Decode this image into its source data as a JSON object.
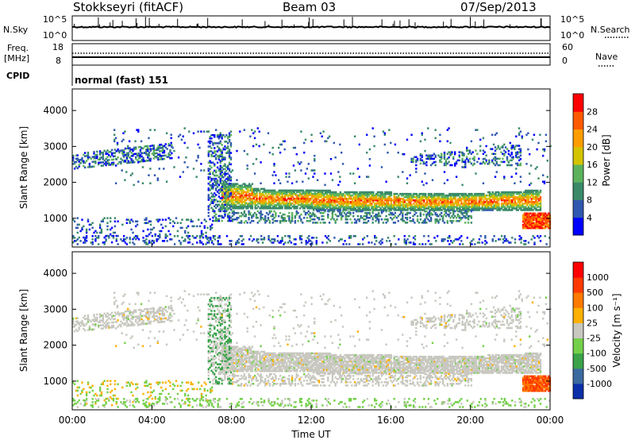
{
  "header": {
    "station": "Stokkseyri (fitACF)",
    "beam": "Beam 03",
    "date": "07/Sep/2013"
  },
  "nsky_panel": {
    "left_label": "N.Sky",
    "left_ticks": [
      "10^5",
      "10^0"
    ],
    "right_ticks": [
      "10^5",
      "10^0"
    ],
    "right_label": "N.Search"
  },
  "freq_panel": {
    "left_label_1": "Freq.",
    "left_label_2": "[MHz]",
    "left_ticks": [
      "18",
      "8"
    ],
    "right_ticks": [
      "60",
      "0"
    ],
    "right_label": "Nave"
  },
  "cpid_panel": {
    "label": "CPID",
    "text": "normal (fast) 151"
  },
  "chart_data": [
    {
      "type": "heatmap",
      "name": "power-panel",
      "ylabel": "Slant Range [km]",
      "x_ticks": [
        "00:00",
        "04:00",
        "08:00",
        "12:00",
        "16:00",
        "20:00",
        "00:00"
      ],
      "xlim_hours": [
        0,
        24
      ],
      "y_ticks": [
        1000,
        2000,
        3000,
        4000
      ],
      "ylim": [
        200,
        4600
      ],
      "colorbar": {
        "label": "Power [dB]",
        "ticks": [
          "4",
          "8",
          "12",
          "16",
          "20",
          "24",
          "28"
        ],
        "colors": [
          "#0000ff",
          "#2f58b0",
          "#3a8a6a",
          "#5db35d",
          "#d4c400",
          "#ff9d00",
          "#ff5a00",
          "#ff0000"
        ]
      },
      "features": [
        {
          "desc": "band",
          "t": [
            0.0,
            5.0
          ],
          "range": [
            2350,
            3000
          ],
          "level": "weak"
        },
        {
          "desc": "main echo",
          "t": [
            7.5,
            23.0
          ],
          "range": [
            1200,
            1900
          ],
          "level": "strong"
        },
        {
          "desc": "low echo",
          "t": [
            22.5,
            24.0
          ],
          "range": [
            700,
            1100
          ],
          "level": "strong"
        },
        {
          "desc": "upper band",
          "t": [
            17.0,
            22.0
          ],
          "range": [
            2400,
            3300
          ],
          "level": "weak"
        }
      ]
    },
    {
      "type": "heatmap",
      "name": "velocity-panel",
      "ylabel": "Slant Range [km]",
      "xlabel": "Time UT",
      "x_ticks": [
        "00:00",
        "04:00",
        "08:00",
        "12:00",
        "16:00",
        "20:00",
        "00:00"
      ],
      "xlim_hours": [
        0,
        24
      ],
      "y_ticks": [
        1000,
        2000,
        3000,
        4000
      ],
      "ylim": [
        200,
        4600
      ],
      "colorbar": {
        "label": "Velocity [m s⁻¹]",
        "ticks": [
          "1000",
          "500",
          "100",
          "25",
          "-25",
          "-100",
          "-500",
          "-1000"
        ],
        "colors": [
          "#0b2fa8",
          "#3b6aa0",
          "#3aa34a",
          "#74d04a",
          "#c8c8c0",
          "#ffb000",
          "#ff7a00",
          "#ff3a00",
          "#ff0000"
        ]
      }
    }
  ]
}
